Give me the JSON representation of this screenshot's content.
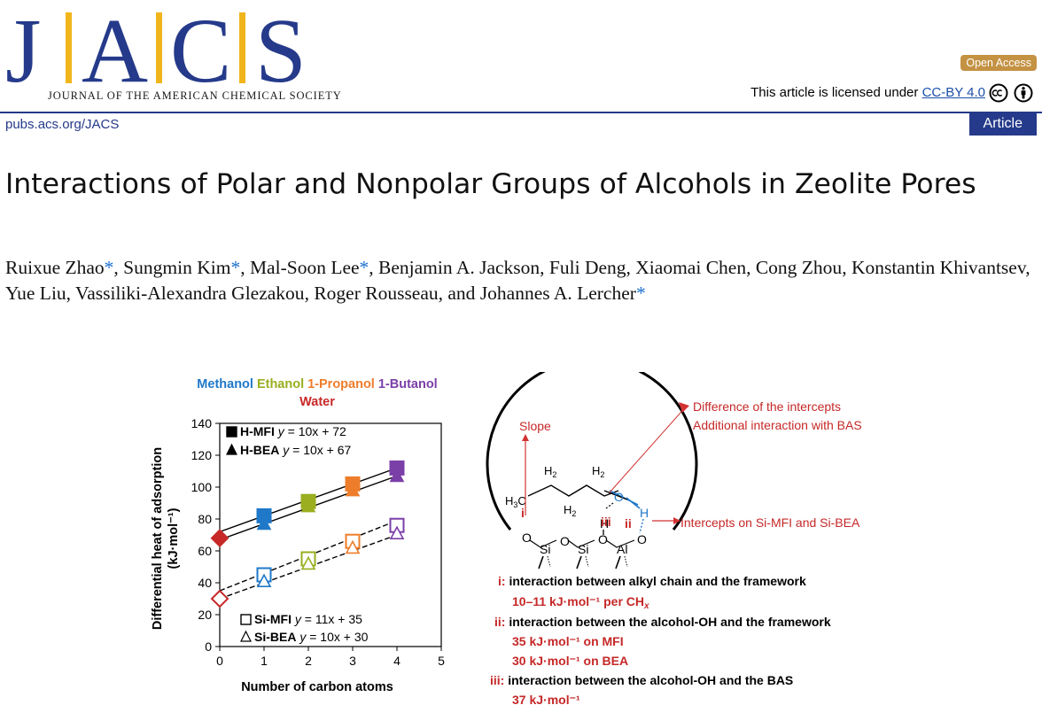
{
  "masthead": {
    "logo_letters": [
      "J",
      "A",
      "C",
      "S"
    ],
    "journal_name": "JOURNAL OF THE AMERICAN CHEMICAL SOCIETY",
    "open_access": "Open Access",
    "license_text": "This article is licensed under",
    "license_link": "CC-BY 4.0",
    "site": "pubs.acs.org/JACS",
    "article_type": "Article",
    "colors": {
      "navy": "#253a8a",
      "gold": "#f1b51c",
      "badge": "#c49243",
      "link": "#1b4fa8"
    }
  },
  "paper": {
    "title": "Interactions of Polar and Nonpolar Groups of Alcohols in Zeolite Pores",
    "authors": [
      {
        "name": "Ruixue Zhao",
        "corresponding": true
      },
      {
        "name": "Sungmin Kim",
        "corresponding": true
      },
      {
        "name": "Mal-Soon Lee",
        "corresponding": true
      },
      {
        "name": "Benjamin A. Jackson",
        "corresponding": false
      },
      {
        "name": "Fuli Deng",
        "corresponding": false
      },
      {
        "name": "Xiaomai Chen",
        "corresponding": false
      },
      {
        "name": "Cong Zhou",
        "corresponding": false
      },
      {
        "name": "Konstantin Khivantsev",
        "corresponding": false
      },
      {
        "name": "Yue Liu",
        "corresponding": false
      },
      {
        "name": "Vassiliki-Alexandra Glezakou",
        "corresponding": false
      },
      {
        "name": "Roger Rousseau",
        "corresponding": false
      },
      {
        "name": "Johannes A. Lercher",
        "corresponding": true
      }
    ]
  },
  "chart_data": {
    "type": "scatter",
    "title": "",
    "legend_top": [
      {
        "name": "Methanol",
        "color": "#1f78c8"
      },
      {
        "name": "Ethanol",
        "color": "#9aae1f"
      },
      {
        "name": "1-Propanol",
        "color": "#ee7d2b"
      },
      {
        "name": "1-Butanol",
        "color": "#7b3fa8"
      },
      {
        "name": "Water",
        "color": "#c62828"
      }
    ],
    "xlabel": "Number of carbon atoms",
    "ylabel": "Differential heat of adsorption",
    "ylabel_unit": "(kJ·mol⁻¹)",
    "xlim": [
      0,
      5
    ],
    "ylim": [
      0,
      140
    ],
    "xticks": [
      0,
      1,
      2,
      3,
      4,
      5
    ],
    "yticks": [
      0,
      20,
      40,
      60,
      80,
      100,
      120,
      140
    ],
    "grid": false,
    "point_colors": [
      "#c62828",
      "#1f78c8",
      "#9aae1f",
      "#ee7d2b",
      "#7b3fa8"
    ],
    "series": [
      {
        "name": "H-MFI",
        "marker": "square-filled",
        "x": [
          0,
          1,
          2,
          3,
          4
        ],
        "y": [
          68,
          82,
          91,
          102,
          112
        ],
        "fit": {
          "slope": 10,
          "intercept": 72
        },
        "line": "solid",
        "eq_prefix": "y",
        "eq": " = 10x + 72"
      },
      {
        "name": "H-BEA",
        "marker": "triangle-filled",
        "x": [
          1,
          2,
          3,
          4
        ],
        "y": [
          77,
          88,
          98,
          107
        ],
        "fit": {
          "slope": 10,
          "intercept": 67
        },
        "line": "solid",
        "eq_prefix": "y",
        "eq": " = 10x + 67"
      },
      {
        "name": "Si-MFI",
        "marker": "square-open",
        "x": [
          0,
          1,
          2,
          3,
          4
        ],
        "y": [
          30,
          45,
          55,
          66,
          76
        ],
        "fit": {
          "slope": 11,
          "intercept": 35
        },
        "line": "dashed",
        "eq_prefix": "y",
        "eq": " = 11x + 35"
      },
      {
        "name": "Si-BEA",
        "marker": "triangle-open",
        "x": [
          1,
          2,
          3,
          4
        ],
        "y": [
          41,
          52,
          62,
          71
        ],
        "fit": {
          "slope": 10,
          "intercept": 30
        },
        "line": "dashed",
        "eq_prefix": "y",
        "eq": " = 10x + 30"
      }
    ]
  },
  "scheme": {
    "labels": {
      "slope": "Slope",
      "difference": "Difference of the intercepts",
      "additional": "Additional interaction with BAS",
      "intercepts": "Intercepts on Si-MFI and Si-BEA",
      "i": "i",
      "ii": "ii",
      "iii": "iii",
      "h3c_main": "H",
      "h3c_sub": "3",
      "h3c_c": "C",
      "h2": "H",
      "h2_sub": "2",
      "o": "O",
      "h": "H",
      "si": "Si",
      "al": "Al"
    },
    "notes": [
      {
        "key": "i:",
        "text": " interaction between alkyl chain and the framework",
        "value": "10–11 kJ·mol⁻¹ per CH",
        "value_sub": "x"
      },
      {
        "key": "ii:",
        "text": " interaction between the alcohol-OH and the framework",
        "value": "35 kJ·mol⁻¹ on MFI",
        "value2": "30 kJ·mol⁻¹ on BEA"
      },
      {
        "key": "iii:",
        "text": " interaction between the alcohol-OH and the BAS",
        "value": "37 kJ·mol⁻¹"
      }
    ]
  }
}
